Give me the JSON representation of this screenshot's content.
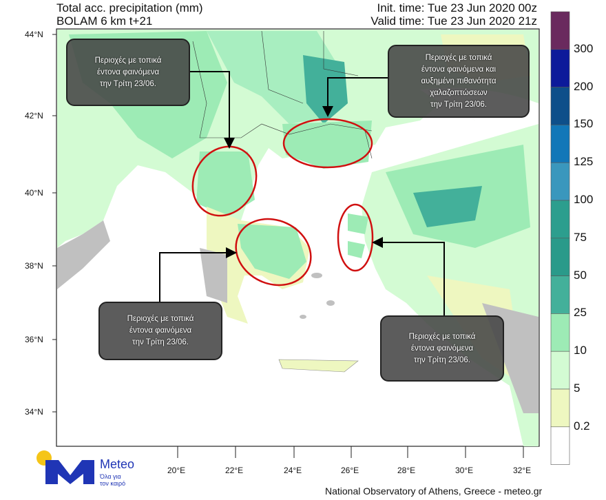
{
  "header": {
    "title": "Total acc. precipitation (mm)",
    "model": "BOLAM 6 km t+21",
    "init_time": "Init. time: Tue 23 Jun 2020 00z",
    "valid_time": "Valid time: Tue 23 Jun 2020 21z"
  },
  "axes": {
    "lat_labels": [
      "44°N",
      "42°N",
      "40°N",
      "38°N",
      "36°N",
      "34°N"
    ],
    "lon_labels": [
      "20°E",
      "22°E",
      "24°E",
      "26°E",
      "28°E",
      "30°E",
      "32°E"
    ]
  },
  "colorbar": {
    "labels": [
      "300",
      "200",
      "150",
      "125",
      "100",
      "75",
      "50",
      "25",
      "10",
      "5",
      "0.2"
    ],
    "colors": [
      "#6a2a5e",
      "#0d1a9a",
      "#0e4f8a",
      "#1277b8",
      "#3a97bd",
      "#2c9e8e",
      "#2a9a8a",
      "#43b09a",
      "#9debb5",
      "#d3fbd3",
      "#eef7c0",
      "#ffffff"
    ]
  },
  "callouts": [
    {
      "text": [
        "Περιοχές με τοπικά",
        "έντονα φαινόμενα",
        "την Τρίτη 23/06."
      ]
    },
    {
      "text": [
        "Περιοχές με τοπικά",
        "έντονα φαινόμενα και",
        "αυξημένη πιθανότητα",
        "χαλαζοπτώσεων",
        "την Τρίτη 23/06."
      ]
    },
    {
      "text": [
        "Περιοχές με τοπικά",
        "έντονα φαινόμενα",
        "την Τρίτη 23/06."
      ]
    },
    {
      "text": [
        "Περιοχές με τοπικά",
        "έντονα φαινόμενα",
        "την Τρίτη 23/06."
      ]
    }
  ],
  "logo": {
    "name": "Meteo",
    "tagline": [
      "Όλα για",
      "τον καιρό"
    ]
  },
  "credit": "National Observatory of Athens, Greece - meteo.gr"
}
